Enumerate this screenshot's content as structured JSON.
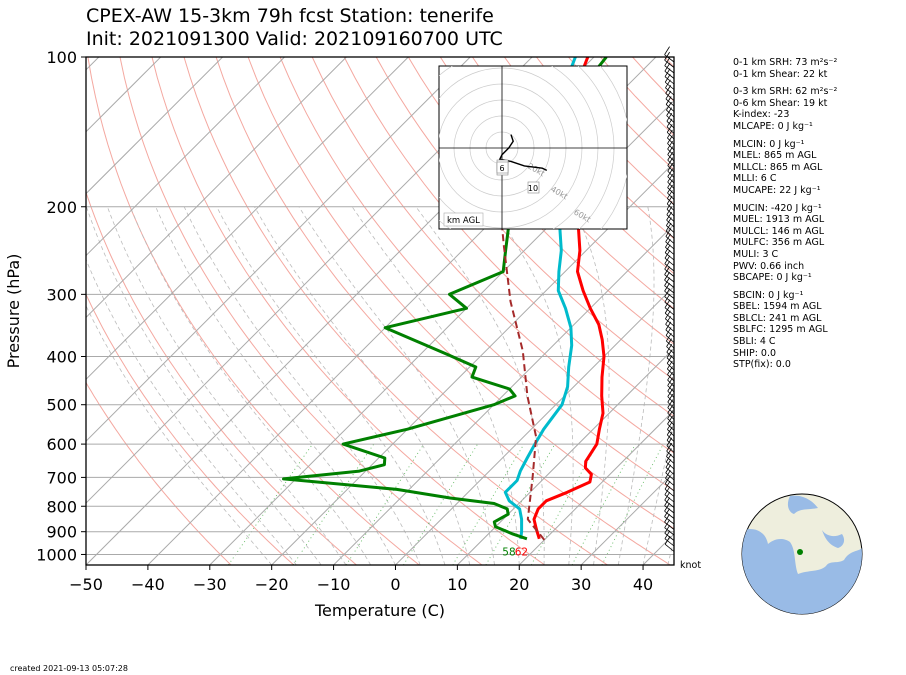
{
  "title": {
    "line1": "CPEX-AW 15-3km  79h fcst  Station: tenerife",
    "line2": "Init: 2021091300  Valid: 202109160700 UTC"
  },
  "chart_data": {
    "type": "line",
    "subtype": "skew-T log-P",
    "xlabel": "Temperature (C)",
    "ylabel": "Pressure (hPa)",
    "xlim": [
      -50,
      45
    ],
    "ylim": [
      1050,
      100
    ],
    "y_scale": "log",
    "x_ticks": [
      -50,
      -40,
      -30,
      -20,
      -10,
      0,
      10,
      20,
      30,
      40
    ],
    "y_ticks": [
      100,
      200,
      300,
      400,
      500,
      600,
      700,
      800,
      900,
      1000
    ],
    "series": [
      {
        "color": "#ff0000",
        "points": [
          [
            19,
            930
          ],
          [
            17,
            890
          ],
          [
            15,
            850
          ],
          [
            14,
            810
          ],
          [
            14,
            780
          ],
          [
            16,
            750
          ],
          [
            18,
            715
          ],
          [
            17,
            690
          ],
          [
            15,
            670
          ],
          [
            14,
            650
          ],
          [
            13,
            600
          ],
          [
            11,
            560
          ],
          [
            9,
            520
          ],
          [
            6,
            480
          ],
          [
            3,
            440
          ],
          [
            0,
            400
          ],
          [
            -3,
            370
          ],
          [
            -6,
            345
          ],
          [
            -10,
            320
          ],
          [
            -14,
            295
          ],
          [
            -18,
            270
          ],
          [
            -21,
            245
          ],
          [
            -25,
            220
          ],
          [
            -29,
            200
          ],
          [
            -33,
            180
          ],
          [
            -37,
            160
          ],
          [
            -40,
            145
          ],
          [
            -44,
            130
          ],
          [
            -48,
            115
          ],
          [
            -51,
            100
          ]
        ]
      },
      {
        "color": "#00bbcc",
        "points": [
          [
            16,
            930
          ],
          [
            15,
            900
          ],
          [
            13,
            850
          ],
          [
            11,
            810
          ],
          [
            8,
            780
          ],
          [
            6,
            750
          ],
          [
            6,
            710
          ],
          [
            5,
            680
          ],
          [
            4,
            640
          ],
          [
            3,
            600
          ],
          [
            2,
            560
          ],
          [
            1,
            500
          ],
          [
            -1,
            460
          ],
          [
            -4,
            420
          ],
          [
            -7,
            380
          ],
          [
            -10,
            350
          ],
          [
            -14,
            320
          ],
          [
            -18,
            295
          ],
          [
            -21,
            270
          ],
          [
            -24,
            245
          ],
          [
            -28,
            220
          ],
          [
            -32,
            200
          ],
          [
            -36,
            180
          ],
          [
            -41,
            160
          ],
          [
            -44,
            145
          ],
          [
            -47,
            130
          ],
          [
            -50,
            115
          ],
          [
            -53,
            100
          ]
        ]
      },
      {
        "color": "#008000",
        "points": [
          [
            17,
            930
          ],
          [
            14,
            910
          ],
          [
            10,
            880
          ],
          [
            9,
            860
          ],
          [
            10,
            830
          ],
          [
            9,
            810
          ],
          [
            6,
            790
          ],
          [
            -2,
            770
          ],
          [
            -12,
            740
          ],
          [
            -32,
            705
          ],
          [
            -21,
            680
          ],
          [
            -18,
            660
          ],
          [
            -19,
            640
          ],
          [
            -28,
            600
          ],
          [
            -20,
            560
          ],
          [
            -10,
            500
          ],
          [
            -8,
            480
          ],
          [
            -10,
            465
          ],
          [
            -18,
            440
          ],
          [
            -19,
            420
          ],
          [
            -26,
            395
          ],
          [
            -40,
            350
          ],
          [
            -30,
            320
          ],
          [
            -35,
            300
          ],
          [
            -30,
            270
          ],
          [
            -33,
            245
          ],
          [
            -37,
            215
          ],
          [
            -36,
            200
          ],
          [
            -38,
            180
          ],
          [
            -40,
            160
          ],
          [
            -42,
            140
          ],
          [
            -45,
            125
          ],
          [
            -47,
            115
          ],
          [
            -48,
            100
          ]
        ]
      },
      {
        "color": "#a52a2a",
        "dashed": true,
        "points": [
          [
            20,
            935
          ],
          [
            14,
            850
          ],
          [
            8,
            700
          ],
          [
            2,
            580
          ],
          [
            -6,
            480
          ],
          [
            -14,
            390
          ],
          [
            -24,
            310
          ],
          [
            -34,
            240
          ],
          [
            -45,
            180
          ],
          [
            -57,
            130
          ]
        ]
      }
    ],
    "annotations": [
      {
        "text": "58",
        "color": "#008000",
        "x": 16.5,
        "y": 990
      },
      {
        "text": "62",
        "color": "#ff0000",
        "x": 18.5,
        "y": 990
      }
    ],
    "hodograph": {
      "label": "km AGL",
      "ring_labels": [
        "20kt",
        "40kt",
        "60kt",
        "80kt"
      ],
      "points": [
        [
          4,
          -6
        ],
        [
          5,
          -3
        ],
        [
          3,
          0
        ],
        [
          0,
          3
        ],
        [
          -1,
          5
        ],
        [
          4,
          6
        ],
        [
          10,
          8
        ],
        [
          18,
          9
        ],
        [
          20,
          10
        ]
      ],
      "markers": [
        "1",
        "3",
        "6",
        "10"
      ]
    }
  },
  "indices": [
    "0-1 km SRH: 73 m²s⁻²",
    "0-1 km Shear: 22 kt",
    "0-3 km SRH: 62 m²s⁻²",
    "0-6 km Shear: 19 kt",
    "K-index: -23",
    "MLCAPE: 0 J kg⁻¹",
    "MLCIN: 0 J kg⁻¹",
    "MLEL: 865 m AGL",
    "MLLCL: 865 m AGL",
    "MLLI: 6 C",
    "MUCAPE: 22 J kg⁻¹",
    "MUCIN: -420 J kg⁻¹",
    "MUEL: 1913 m AGL",
    "MULCL: 146 m AGL",
    "MULFC: 356 m AGL",
    "MULI: 3 C",
    "PWV: 0.66 inch",
    "SBCAPE: 0 J kg⁻¹",
    "SBCIN: 0 J kg⁻¹",
    "SBEL: 1594 m AGL",
    "SBLCL: 241 m AGL",
    "SBLFC: 1295 m AGL",
    "SBLI: 4 C",
    "SHIP: 0.0",
    "STP(fix): 0.0"
  ],
  "wind_unit": "knot",
  "created": "created 2021-09-13 05:07:28"
}
